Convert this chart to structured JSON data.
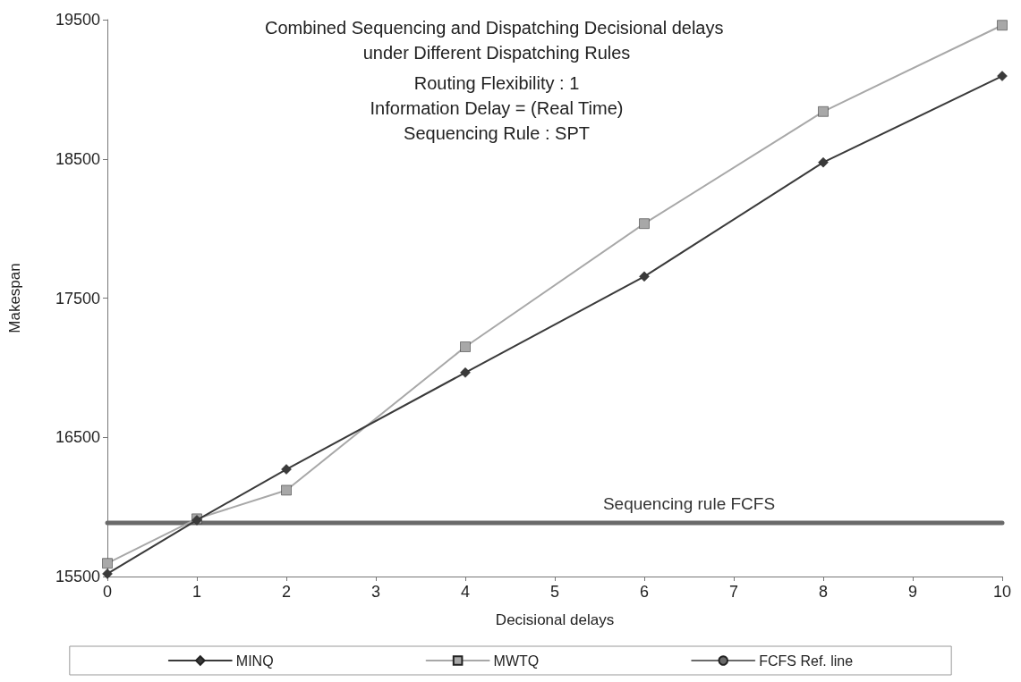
{
  "chart_data": {
    "type": "line",
    "title": "Combined Sequencing and Dispatching Decisional delays under Different Dispatching Rules",
    "subtitle": "Routing Flexibility : 1\nInformation Delay = (Real Time)\nSequencing Rule : SPT",
    "xlabel": "Decisional delays",
    "ylabel": "Makespan",
    "x": [
      0,
      1,
      2,
      4,
      6,
      8,
      10
    ],
    "series": [
      {
        "name": "MINQ",
        "color": "#3a3a3a",
        "marker": "diamond",
        "line_style": "solid",
        "values": [
          15520,
          15905,
          16270,
          16965,
          17655,
          18475,
          19095
        ]
      },
      {
        "name": "MWTQ",
        "color": "#a8a8a8",
        "marker": "square",
        "line_style": "solid",
        "values": [
          15595,
          15915,
          16120,
          17150,
          18035,
          18840,
          19460
        ]
      },
      {
        "name": "FCFS Ref. line",
        "color": "#6a6a6a",
        "marker": "none",
        "line_style": "solid",
        "x": [
          0,
          10
        ],
        "values": [
          15885,
          15885
        ]
      }
    ],
    "annotations": [
      {
        "text": "Sequencing rule FCFS",
        "x": 6.5,
        "y": 15885
      }
    ],
    "xlim": [
      0,
      10
    ],
    "xticks": [
      0,
      1,
      2,
      3,
      4,
      5,
      6,
      7,
      8,
      9,
      10
    ],
    "ylim": [
      15500,
      19500
    ],
    "yticks": [
      15500,
      16500,
      17500,
      18500,
      19500
    ],
    "grid": false,
    "legend": "bottom"
  }
}
